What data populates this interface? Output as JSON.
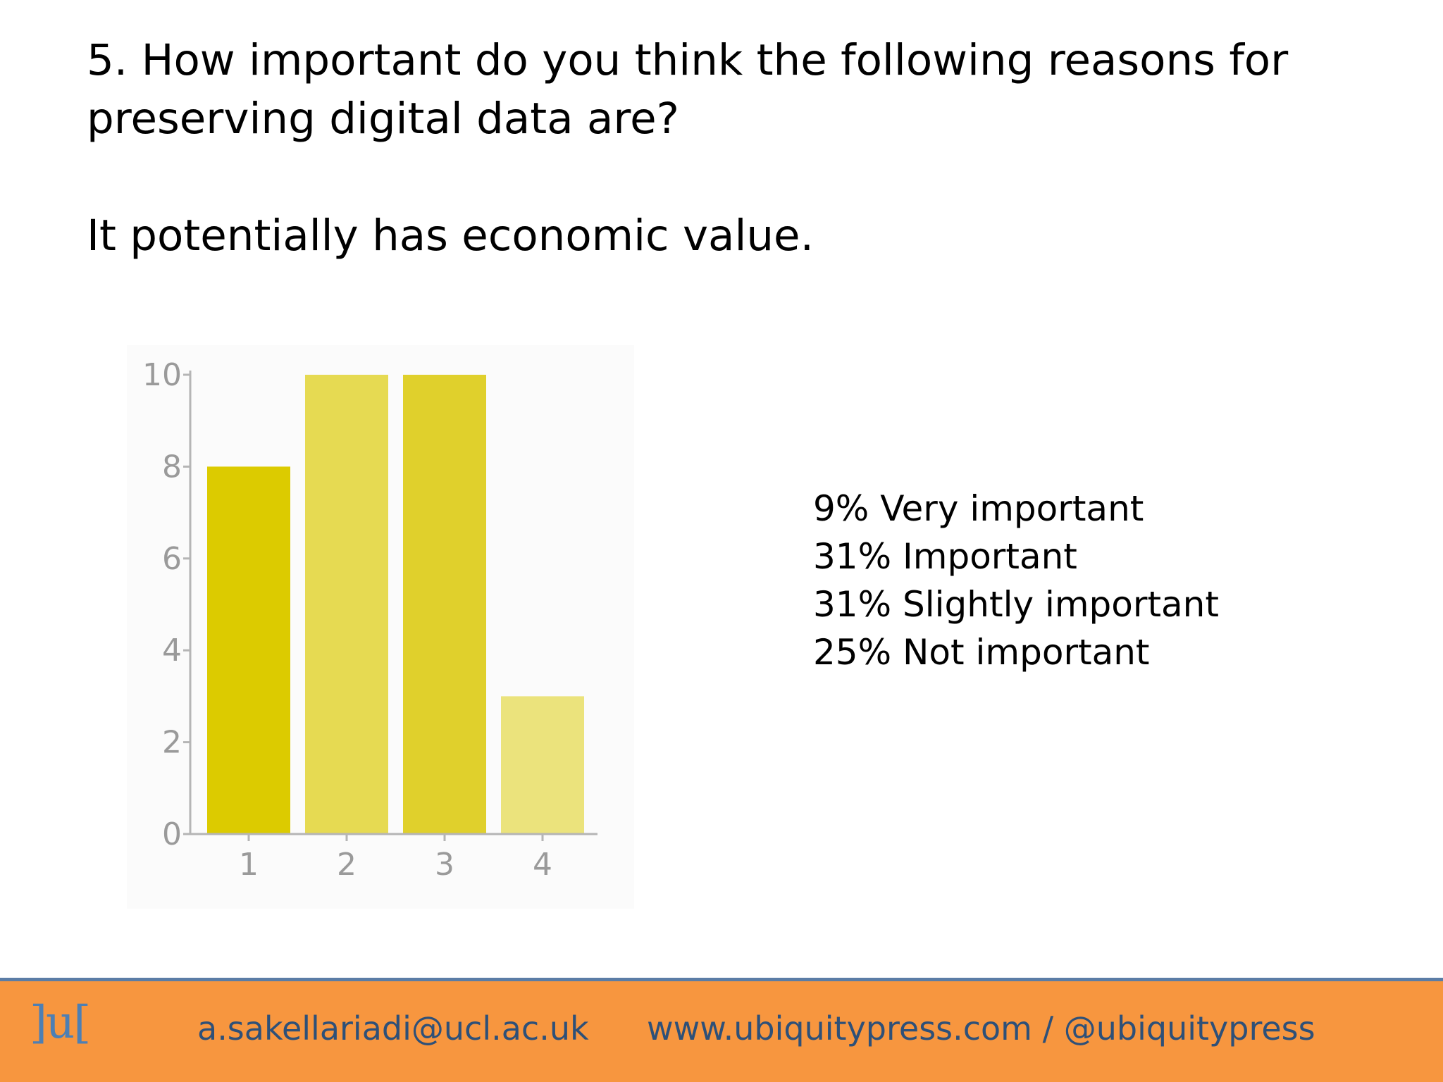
{
  "slide": {
    "question": "5. How important do you think the following reasons for\npreserving digital data are?",
    "statement": "It potentially has economic value."
  },
  "chart_data": {
    "type": "bar",
    "categories": [
      "1",
      "2",
      "3",
      "4"
    ],
    "values": [
      8,
      10,
      10,
      3
    ],
    "bar_colors": [
      "#dccb00",
      "#e6da52",
      "#e0d02c",
      "#ebe37c"
    ],
    "yticks": [
      0,
      2,
      4,
      6,
      8,
      10
    ],
    "ylim": [
      0,
      10
    ],
    "axis_color": "#b5b5b5",
    "grid": false,
    "title": "",
    "xlabel": "",
    "ylabel": ""
  },
  "legend": {
    "items": [
      "9% Very important",
      "31% Important",
      "31% Slightly important",
      "25% Not important"
    ]
  },
  "footer": {
    "logo": "]u[",
    "email": "a.sakellariadi@ucl.ac.uk",
    "web": "www.ubiquitypress.com / @ubiquitypress",
    "background_color": "#f7963f",
    "text_color": "#2e5078",
    "logo_color": "#4d7fb4"
  }
}
